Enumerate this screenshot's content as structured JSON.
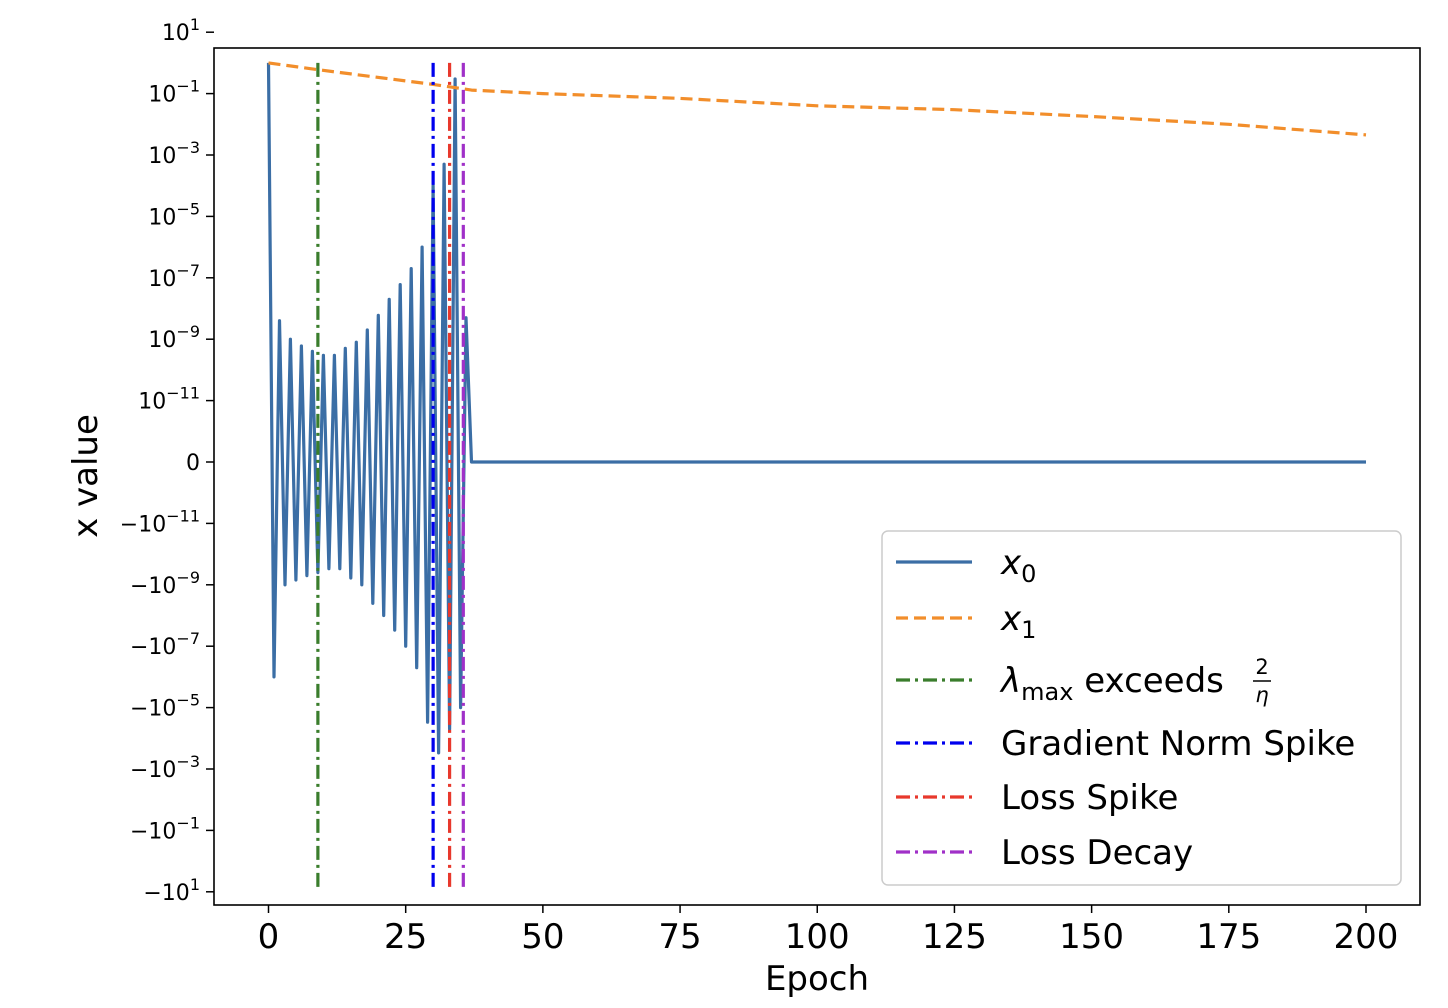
{
  "chart_data": {
    "type": "line",
    "xlabel": "Epoch",
    "ylabel": "x value",
    "yscale": "symlog",
    "xlim": [
      -10,
      210
    ],
    "ylim": [
      -100,
      100
    ],
    "grid": false,
    "legend_position": "lower-right",
    "x_ticks": [
      0,
      25,
      50,
      75,
      100,
      125,
      150,
      175,
      200
    ],
    "y_ticks": [
      {
        "value": 10,
        "label_base": "10",
        "label_exp": "1"
      },
      {
        "value": 0.1,
        "label_base": "10",
        "label_exp": "−1"
      },
      {
        "value": 0.001,
        "label_base": "10",
        "label_exp": "−3"
      },
      {
        "value": 1e-05,
        "label_base": "10",
        "label_exp": "−5"
      },
      {
        "value": 1e-07,
        "label_base": "10",
        "label_exp": "−7"
      },
      {
        "value": 1e-09,
        "label_base": "10",
        "label_exp": "−9"
      },
      {
        "value": 1e-11,
        "label_base": "10",
        "label_exp": "−11"
      },
      {
        "value": 0,
        "label_base": "0",
        "label_exp": ""
      },
      {
        "value": -1e-11,
        "label_base": "−10",
        "label_exp": "−11"
      },
      {
        "value": -1e-09,
        "label_base": "−10",
        "label_exp": "−9"
      },
      {
        "value": -1e-07,
        "label_base": "−10",
        "label_exp": "−7"
      },
      {
        "value": -1e-05,
        "label_base": "−10",
        "label_exp": "−5"
      },
      {
        "value": -0.001,
        "label_base": "−10",
        "label_exp": "−3"
      },
      {
        "value": -0.1,
        "label_base": "−10",
        "label_exp": "−1"
      },
      {
        "value": -10,
        "label_base": "−10",
        "label_exp": "1"
      }
    ],
    "series": [
      {
        "name": "x0",
        "label_main": "x",
        "label_sub": "0",
        "color": "#3b6ea5",
        "style": "solid",
        "x": [
          0,
          1,
          2,
          3,
          4,
          5,
          6,
          7,
          8,
          9,
          10,
          11,
          12,
          13,
          14,
          15,
          16,
          17,
          18,
          19,
          20,
          21,
          22,
          23,
          24,
          25,
          26,
          27,
          28,
          29,
          30,
          31,
          32,
          33,
          34,
          35,
          36,
          37,
          50,
          100,
          150,
          200
        ],
        "y": [
          1,
          -1e-06,
          4e-09,
          -1e-09,
          1e-09,
          -7e-10,
          6e-10,
          -5e-10,
          4e-10,
          -4e-10,
          3e-10,
          -3e-10,
          3e-10,
          -3e-10,
          5e-10,
          -6e-10,
          8e-10,
          -1e-09,
          2e-09,
          -4e-09,
          6e-09,
          -1e-08,
          2e-08,
          -3e-08,
          6e-08,
          -1e-07,
          2e-07,
          -5e-07,
          1e-06,
          -3e-05,
          0.0001,
          -0.0003,
          0.0005,
          -5e-05,
          0.3,
          -1e-05,
          5e-09,
          0,
          0,
          0,
          0,
          0
        ]
      },
      {
        "name": "x1",
        "label_main": "x",
        "label_sub": "1",
        "color": "#f28e2b",
        "style": "dashed",
        "x": [
          0,
          9,
          30,
          37,
          50,
          75,
          100,
          125,
          150,
          175,
          200
        ],
        "y": [
          1,
          0.6,
          0.2,
          0.13,
          0.1,
          0.07,
          0.04,
          0.03,
          0.018,
          0.01,
          0.0045
        ]
      }
    ],
    "vlines": [
      {
        "name": "lambda-max",
        "x": 9,
        "color": "#3a7d2c",
        "style": "dashdot",
        "label_main": "λ",
        "label_sub": "max",
        "label_tail": " exceeds ",
        "frac_num": "2",
        "frac_den": "η"
      },
      {
        "name": "gradient-norm-spike",
        "x": 30,
        "color": "#0000ee",
        "style": "dashdot",
        "label": "Gradient Norm Spike"
      },
      {
        "name": "loss-spike",
        "x": 33,
        "color": "#e8382c",
        "style": "dashdot",
        "label": "Loss Spike"
      },
      {
        "name": "loss-decay",
        "x": 35.5,
        "color": "#a030c8",
        "style": "dashdot",
        "label": "Loss Decay"
      }
    ],
    "vline_range": [
      -10,
      1
    ]
  }
}
